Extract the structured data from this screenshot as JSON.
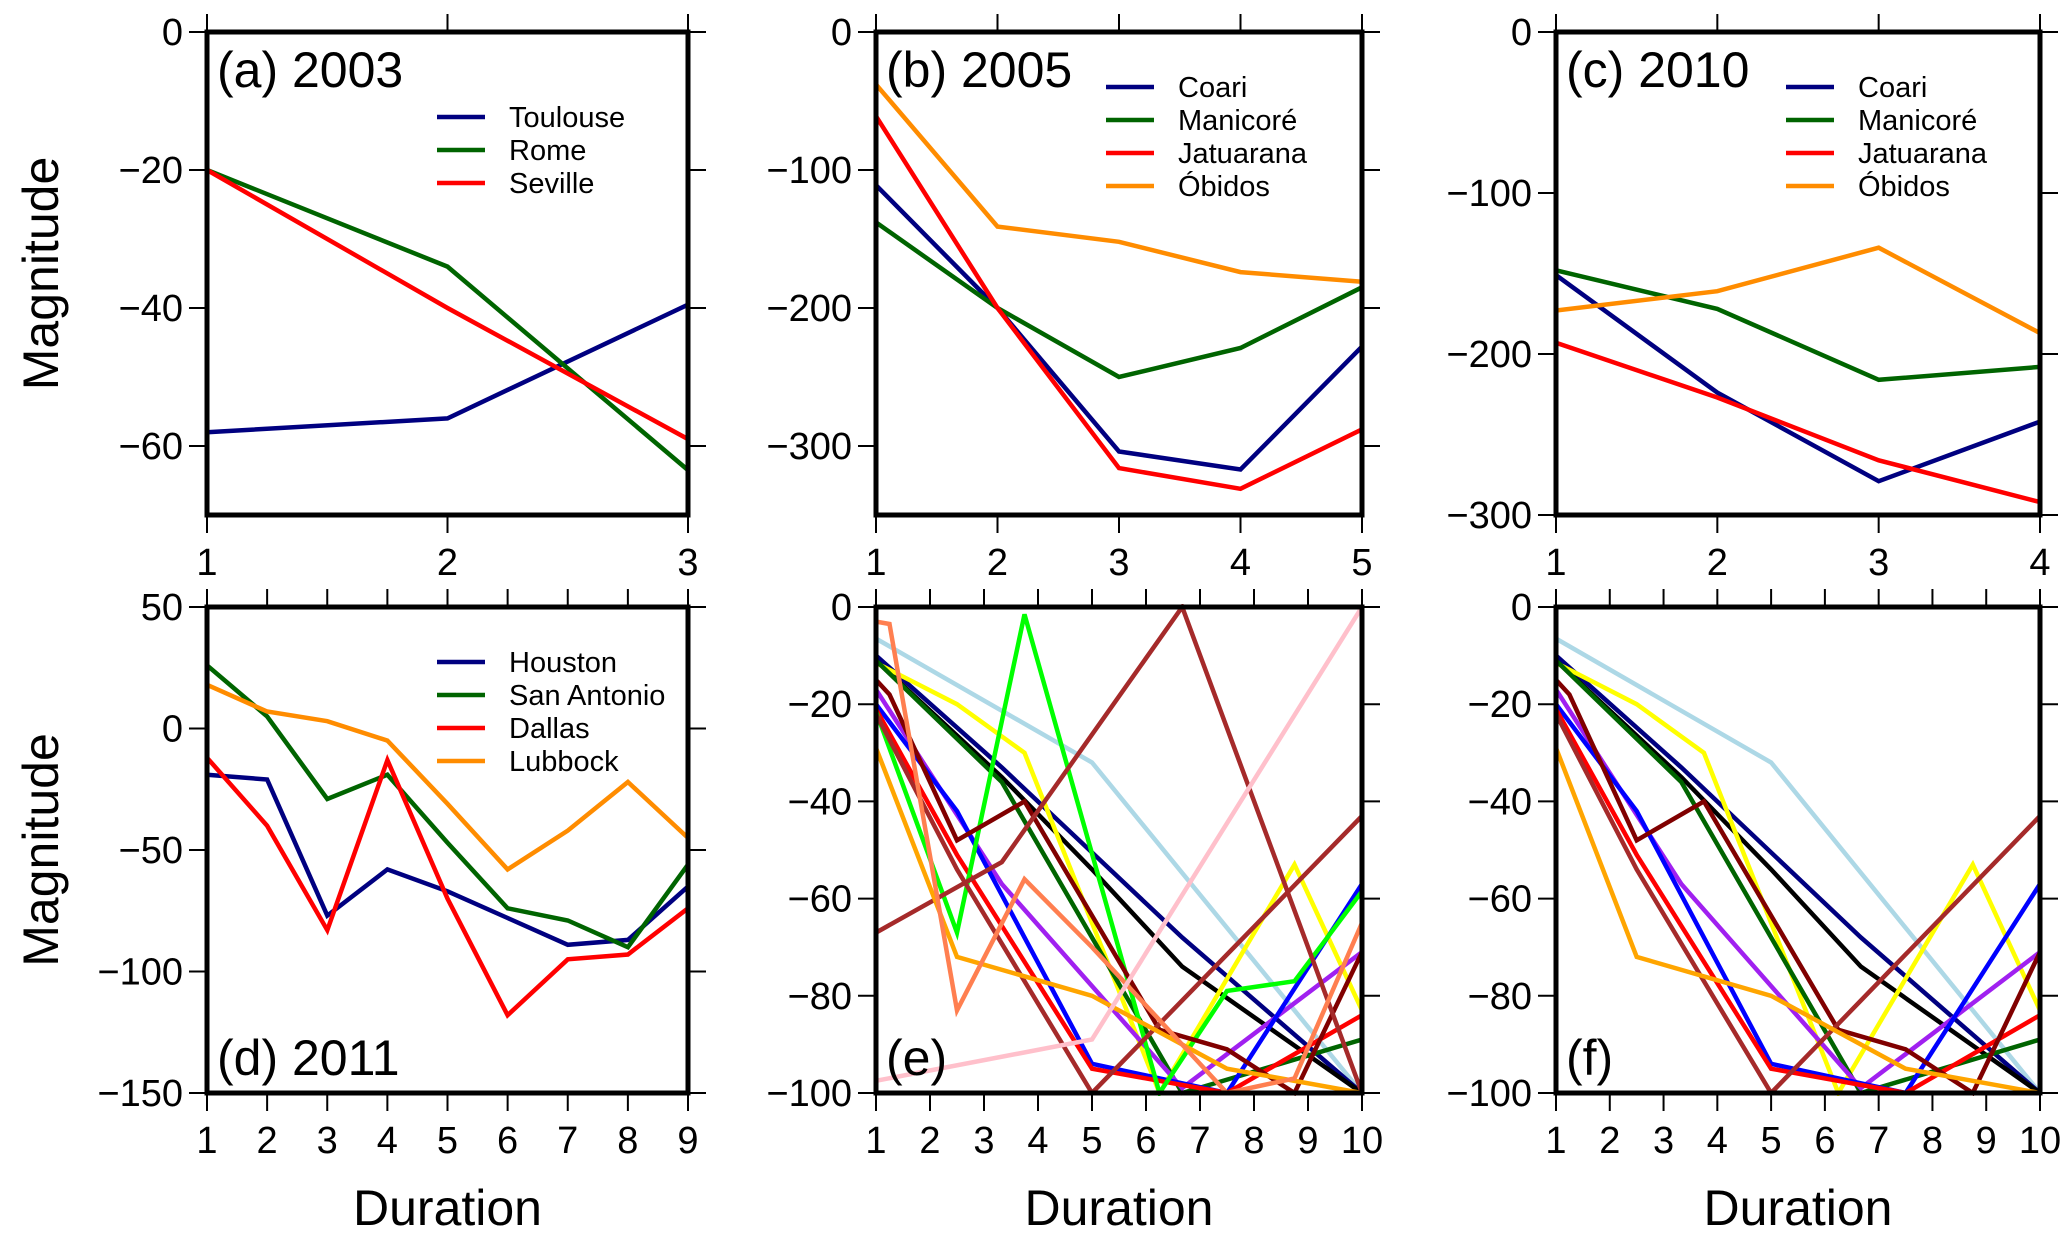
{
  "chart_data": [
    {
      "id": "a",
      "type": "line",
      "title": "(a) 2003",
      "title_position": "top-left",
      "xlabel": "",
      "ylabel": "Magnitude",
      "xlim": [
        1,
        3
      ],
      "ylim": [
        -70,
        0
      ],
      "xticks": [
        1,
        2,
        3
      ],
      "yticks": [
        0,
        -20,
        -40,
        -60
      ],
      "legend_position": "top-right",
      "series": [
        {
          "name": "Toulouse",
          "color": "#000080",
          "x": [
            1,
            2,
            3
          ],
          "values": [
            -58,
            -56,
            -39.5
          ]
        },
        {
          "name": "Rome",
          "color": "#006400",
          "x": [
            1,
            2,
            3
          ],
          "values": [
            -20,
            -34,
            -63.5
          ]
        },
        {
          "name": "Seville",
          "color": "#ff0000",
          "x": [
            1,
            2,
            3
          ],
          "values": [
            -20,
            -40,
            -59
          ]
        }
      ]
    },
    {
      "id": "b",
      "type": "line",
      "title": "(b) 2005",
      "title_position": "top-left",
      "xlabel": "",
      "ylabel": "",
      "xlim": [
        1,
        5
      ],
      "ylim": [
        -350,
        0
      ],
      "xticks": [
        1,
        2,
        3,
        4,
        5
      ],
      "yticks": [
        0,
        -100,
        -200,
        -300
      ],
      "legend_position": "top-right",
      "series": [
        {
          "name": "Coari",
          "color": "#000080",
          "x": [
            1,
            2,
            3,
            4,
            5
          ],
          "values": [
            -111,
            -200,
            -304,
            -317,
            -228
          ]
        },
        {
          "name": "Manicoré",
          "color": "#006400",
          "x": [
            1,
            2,
            3,
            4,
            5
          ],
          "values": [
            -138,
            -200,
            -250,
            -229,
            -185
          ]
        },
        {
          "name": "Jatuarana",
          "color": "#ff0000",
          "x": [
            1,
            2,
            3,
            4,
            5
          ],
          "values": [
            -61,
            -200,
            -316,
            -331,
            -288
          ]
        },
        {
          "name": "Óbidos",
          "color": "#ff8c00",
          "x": [
            1,
            2,
            3,
            4,
            5
          ],
          "values": [
            -38,
            -141,
            -152,
            -174,
            -181
          ]
        }
      ]
    },
    {
      "id": "c",
      "type": "line",
      "title": "(c) 2010",
      "title_position": "top-left",
      "xlabel": "",
      "ylabel": "",
      "xlim": [
        1,
        4
      ],
      "ylim": [
        -300,
        0
      ],
      "xticks": [
        1,
        2,
        3,
        4
      ],
      "yticks": [
        0,
        -100,
        -200,
        -300
      ],
      "legend_position": "top-right",
      "series": [
        {
          "name": "Coari",
          "color": "#000080",
          "x": [
            1,
            2,
            3,
            4
          ],
          "values": [
            -151,
            -224,
            -279,
            -242
          ]
        },
        {
          "name": "Manicoré",
          "color": "#006400",
          "x": [
            1,
            2,
            3,
            4
          ],
          "values": [
            -148,
            -172,
            -216,
            -208
          ]
        },
        {
          "name": "Jatuarana",
          "color": "#ff0000",
          "x": [
            1,
            2,
            3,
            4
          ],
          "values": [
            -193,
            -227,
            -266,
            -292
          ]
        },
        {
          "name": "Óbidos",
          "color": "#ff8c00",
          "x": [
            1,
            2,
            3,
            4
          ],
          "values": [
            -173,
            -161,
            -134,
            -187
          ]
        }
      ]
    },
    {
      "id": "d",
      "type": "line",
      "title": "(d) 2011",
      "title_position": "bottom-left",
      "xlabel": "Duration",
      "ylabel": "Magnitude",
      "xlim": [
        1,
        9
      ],
      "ylim": [
        -150,
        50
      ],
      "xticks": [
        1,
        2,
        3,
        4,
        5,
        6,
        7,
        8,
        9
      ],
      "yticks": [
        50,
        0,
        -50,
        -100,
        -150
      ],
      "legend_position": "top-right",
      "series": [
        {
          "name": "Houston",
          "color": "#000080",
          "x": [
            1,
            2,
            3,
            4,
            5,
            6,
            7,
            8,
            9
          ],
          "values": [
            -19,
            -21,
            -77,
            -58,
            -67,
            -78,
            -89,
            -87,
            -65
          ]
        },
        {
          "name": "San Antonio",
          "color": "#006400",
          "x": [
            1,
            2,
            3,
            4,
            5,
            6,
            7,
            8,
            9
          ],
          "values": [
            26,
            5,
            -29,
            -19,
            -47,
            -74,
            -79,
            -90,
            -56
          ]
        },
        {
          "name": "Dallas",
          "color": "#ff0000",
          "x": [
            1,
            2,
            3,
            4,
            5,
            6,
            7,
            8,
            9
          ],
          "values": [
            -12,
            -40,
            -83,
            -13,
            -70,
            -118,
            -95,
            -93,
            -74
          ]
        },
        {
          "name": "Lubbock",
          "color": "#ff8c00",
          "x": [
            1,
            2,
            3,
            4,
            5,
            6,
            7,
            8,
            9
          ],
          "values": [
            18,
            7,
            3,
            -5,
            -31,
            -58,
            -42,
            -22,
            -45
          ]
        }
      ]
    },
    {
      "id": "e",
      "type": "line",
      "title": "(e)",
      "title_position": "bottom-left",
      "xlabel": "Duration",
      "ylabel": "",
      "xlim": [
        1,
        10
      ],
      "ylim": [
        -100,
        0
      ],
      "xticks": [
        1,
        2,
        3,
        4,
        5,
        6,
        7,
        8,
        9,
        10
      ],
      "yticks": [
        0,
        -20,
        -40,
        -60,
        -80,
        -100
      ],
      "legend_position": "none",
      "series": [
        {
          "name": "lightblue",
          "color": "#add8e6",
          "x": [
            1,
            5,
            7.5,
            10
          ],
          "values": [
            -6.5,
            -32,
            -66,
            -100
          ]
        },
        {
          "name": "navy",
          "color": "#000080",
          "x": [
            1,
            3.33,
            6.67,
            10
          ],
          "values": [
            -10,
            -33,
            -68,
            -100
          ]
        },
        {
          "name": "black",
          "color": "#000000",
          "x": [
            1,
            3.33,
            5,
            6.67,
            10
          ],
          "values": [
            -11,
            -35,
            -54,
            -74,
            -100
          ]
        },
        {
          "name": "yellow",
          "color": "#ffff00",
          "x": [
            1,
            2.5,
            3.75,
            6.25,
            8.75,
            10
          ],
          "values": [
            -11.5,
            -20,
            -30,
            -100,
            -53,
            -83
          ]
        },
        {
          "name": "darkgreen",
          "color": "#006400",
          "x": [
            1,
            3.33,
            6.67,
            10
          ],
          "values": [
            -11,
            -36,
            -100,
            -89
          ]
        },
        {
          "name": "purple",
          "color": "#a020f0",
          "x": [
            1,
            3.33,
            6.67,
            10
          ],
          "values": [
            -17,
            -57,
            -99,
            -71
          ]
        },
        {
          "name": "blue",
          "color": "#0000ff",
          "x": [
            1,
            2.5,
            5,
            6.67,
            7.5,
            10
          ],
          "values": [
            -20,
            -42,
            -94,
            -98,
            -100,
            -57
          ]
        },
        {
          "name": "red",
          "color": "#ff0000",
          "x": [
            1,
            2.5,
            5,
            7.5,
            10
          ],
          "values": [
            -21,
            -51,
            -95,
            -100,
            -84
          ]
        },
        {
          "name": "lime",
          "color": "#00ff00",
          "x": [
            1,
            2.5,
            3.75,
            6.25,
            7.5,
            8.75,
            10
          ],
          "values": [
            -21.5,
            -67,
            -1.5,
            -100,
            -79,
            -77,
            -58.5
          ]
        },
        {
          "name": "maroon",
          "color": "#800000",
          "x": [
            1,
            1.25,
            2.5,
            3.75,
            6.25,
            7.5,
            8.75,
            10
          ],
          "values": [
            -15,
            -18,
            -48,
            -40,
            -87,
            -91,
            -100,
            -71
          ]
        },
        {
          "name": "brown-a",
          "color": "#a52a2a",
          "x": [
            1,
            2.5,
            5,
            10
          ],
          "values": [
            -22,
            -54,
            -100,
            -43
          ]
        },
        {
          "name": "brown-b",
          "color": "#a52a2a",
          "x": [
            1,
            3.33,
            6.67,
            10
          ],
          "values": [
            -67,
            -52.5,
            0,
            -100
          ]
        },
        {
          "name": "orange",
          "color": "#ffa500",
          "x": [
            1,
            2.5,
            5,
            7.5,
            10
          ],
          "values": [
            -29,
            -72,
            -80,
            -95,
            -100
          ]
        },
        {
          "name": "coral",
          "color": "#ff7f50",
          "x": [
            1,
            1.25,
            2.5,
            3.75,
            5,
            7.5,
            8.75,
            10
          ],
          "values": [
            -3,
            -3.5,
            -83,
            -56,
            -70,
            -100,
            -97,
            -65
          ]
        },
        {
          "name": "pink",
          "color": "#ffc0cb",
          "x": [
            1,
            5,
            10
          ],
          "values": [
            -97.5,
            -89,
            0
          ]
        }
      ]
    },
    {
      "id": "f",
      "type": "line",
      "title": "(f)",
      "title_position": "bottom-left",
      "xlabel": "Duration",
      "ylabel": "",
      "xlim": [
        1,
        10
      ],
      "ylim": [
        -100,
        0
      ],
      "xticks": [
        1,
        2,
        3,
        4,
        5,
        6,
        7,
        8,
        9,
        10
      ],
      "yticks": [
        0,
        -20,
        -40,
        -60,
        -80,
        -100
      ],
      "legend_position": "none",
      "series": [
        {
          "name": "lightblue",
          "color": "#add8e6",
          "x": [
            1,
            5,
            7.5,
            10
          ],
          "values": [
            -6.5,
            -32,
            -66,
            -100
          ]
        },
        {
          "name": "navy",
          "color": "#000080",
          "x": [
            1,
            3.33,
            6.67,
            10
          ],
          "values": [
            -10,
            -33,
            -68,
            -100
          ]
        },
        {
          "name": "black",
          "color": "#000000",
          "x": [
            1,
            3.33,
            5,
            6.67,
            10
          ],
          "values": [
            -11,
            -35,
            -54,
            -74,
            -100
          ]
        },
        {
          "name": "yellow",
          "color": "#ffff00",
          "x": [
            1,
            2.5,
            3.75,
            6.25,
            8.75,
            10
          ],
          "values": [
            -11.5,
            -20,
            -30,
            -100,
            -53,
            -83
          ]
        },
        {
          "name": "darkgreen",
          "color": "#006400",
          "x": [
            1,
            3.33,
            6.67,
            10
          ],
          "values": [
            -11,
            -36,
            -100,
            -89
          ]
        },
        {
          "name": "purple",
          "color": "#a020f0",
          "x": [
            1,
            3.33,
            6.67,
            10
          ],
          "values": [
            -17,
            -57,
            -99,
            -71
          ]
        },
        {
          "name": "blue",
          "color": "#0000ff",
          "x": [
            1,
            2.5,
            5,
            6.67,
            7.5,
            10
          ],
          "values": [
            -20,
            -42,
            -94,
            -98,
            -100,
            -57
          ]
        },
        {
          "name": "red",
          "color": "#ff0000",
          "x": [
            1,
            2.5,
            5,
            7.5,
            10
          ],
          "values": [
            -21,
            -51,
            -95,
            -100,
            -84
          ]
        },
        {
          "name": "maroon",
          "color": "#800000",
          "x": [
            1,
            1.25,
            2.5,
            3.75,
            6.25,
            7.5,
            8.75,
            10
          ],
          "values": [
            -15,
            -18,
            -48,
            -40,
            -87,
            -91,
            -100,
            -71
          ]
        },
        {
          "name": "brown-a",
          "color": "#a52a2a",
          "x": [
            1,
            2.5,
            5,
            10
          ],
          "values": [
            -22,
            -54,
            -100,
            -43
          ]
        },
        {
          "name": "orange",
          "color": "#ffa500",
          "x": [
            1,
            2.5,
            5,
            7.5,
            10
          ],
          "values": [
            -29,
            -72,
            -80,
            -95,
            -100
          ]
        }
      ]
    }
  ]
}
